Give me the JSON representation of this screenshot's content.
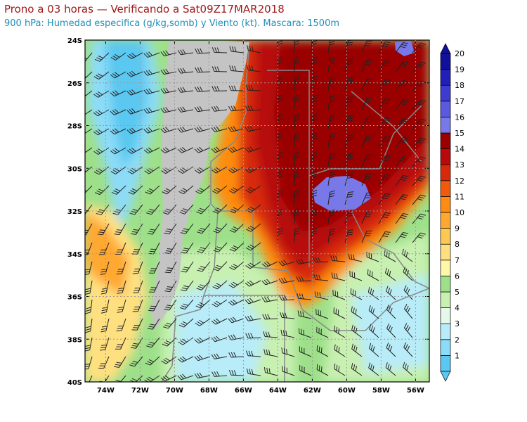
{
  "header": {
    "title": "Prono a 03 horas — Verificando a Sat09Z17MAR2018",
    "subtitle": "900 hPa: Humedad especifica (g/kg,somb) y Viento (kt). Mascara: 1500m"
  },
  "map": {
    "lat_labels": [
      "24S",
      "26S",
      "28S",
      "30S",
      "32S",
      "34S",
      "36S",
      "38S",
      "40S"
    ],
    "lon_labels": [
      "74W",
      "72W",
      "70W",
      "68W",
      "66W",
      "64W",
      "62W",
      "60W",
      "58W",
      "56W"
    ],
    "lat_range": [
      -40,
      -24
    ],
    "lon_range": [
      -75.2,
      -55.2
    ],
    "grid": true
  },
  "colorbar": {
    "labels": [
      "1",
      "2",
      "3",
      "4",
      "5",
      "6",
      "7",
      "8",
      "9",
      "10",
      "11",
      "12",
      "13",
      "14",
      "15",
      "16",
      "17",
      "18",
      "19",
      "20"
    ],
    "colors": [
      "#5ac8f0",
      "#8cdcf8",
      "#b8ecf8",
      "#e6f8ea",
      "#c8f0b0",
      "#9ee08a",
      "#fff6a8",
      "#ffe080",
      "#ffc850",
      "#ffa830",
      "#ff8c10",
      "#f05a0a",
      "#d82a0a",
      "#b80a0a",
      "#9a0000",
      "#7878e8",
      "#5a5ae0",
      "#3c3cd0",
      "#2020b8",
      "#10109a"
    ]
  },
  "colors": {
    "mask": "#c4c4c4",
    "outline": "#888888",
    "barb": "#222222"
  }
}
